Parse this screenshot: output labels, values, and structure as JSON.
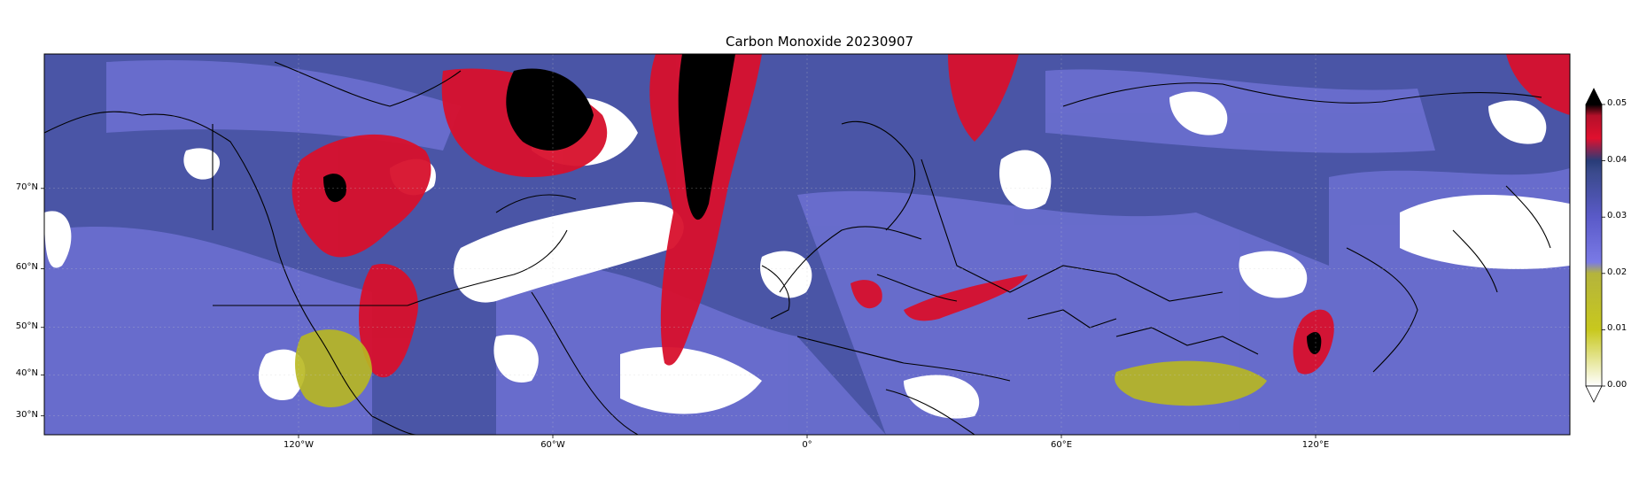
{
  "title": "Carbon Monoxide 20230907",
  "map": {
    "projection": "mercator",
    "extent": {
      "lon": [
        -180,
        180
      ],
      "lat": [
        25,
        80
      ]
    },
    "lat_ticks": [
      {
        "value": 70,
        "label": "70°N"
      },
      {
        "value": 60,
        "label": "60°N"
      },
      {
        "value": 50,
        "label": "50°N"
      },
      {
        "value": 40,
        "label": "40°N"
      },
      {
        "value": 30,
        "label": "30°N"
      }
    ],
    "lon_ticks": [
      {
        "value": -120,
        "label": "120°W"
      },
      {
        "value": -60,
        "label": "60°W"
      },
      {
        "value": 0,
        "label": "0°"
      },
      {
        "value": 60,
        "label": "60°E"
      },
      {
        "value": 120,
        "label": "120°E"
      }
    ],
    "colors": {
      "background_field": "#4a55a6",
      "no_data": "#ffffff",
      "coastline": "#000000"
    }
  },
  "colorbar": {
    "ticks": [
      {
        "value": 0.0,
        "label": "0.00"
      },
      {
        "value": 0.01,
        "label": "0.01"
      },
      {
        "value": 0.02,
        "label": "0.02"
      },
      {
        "value": 0.03,
        "label": "0.03"
      },
      {
        "value": 0.04,
        "label": "0.04"
      },
      {
        "value": 0.05,
        "label": "0.05"
      }
    ],
    "range": [
      0.0,
      0.05
    ],
    "extend": "both",
    "stops": [
      {
        "value": 0.0,
        "color": "#ffffff"
      },
      {
        "value": 0.01,
        "color": "#c8c81e"
      },
      {
        "value": 0.02,
        "color": "#b4b43c"
      },
      {
        "value": 0.022,
        "color": "#7a7ae6"
      },
      {
        "value": 0.03,
        "color": "#5a5ac8"
      },
      {
        "value": 0.038,
        "color": "#3a4a8c"
      },
      {
        "value": 0.04,
        "color": "#283c78"
      },
      {
        "value": 0.044,
        "color": "#e0102e"
      },
      {
        "value": 0.048,
        "color": "#b4102a"
      },
      {
        "value": 0.05,
        "color": "#000000"
      }
    ]
  }
}
